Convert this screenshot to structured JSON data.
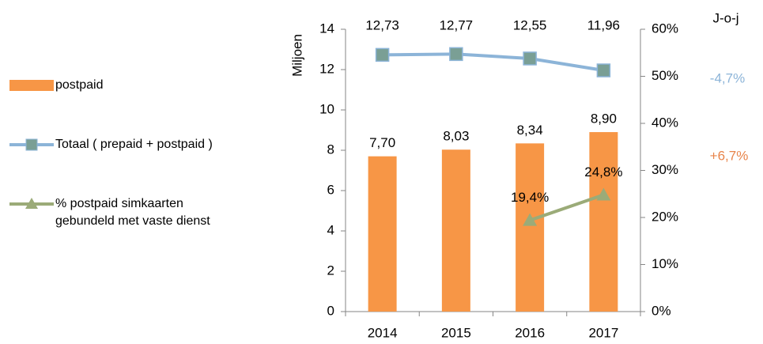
{
  "chart_data": {
    "type": "bar",
    "categories": [
      "2014",
      "2015",
      "2016",
      "2017"
    ],
    "y_label": "Miljoen",
    "ylim": [
      0,
      14
    ],
    "yticks": [
      0,
      2,
      4,
      6,
      8,
      10,
      12,
      14
    ],
    "y2lim": [
      0,
      60
    ],
    "y2ticks": [
      {
        "value": 0,
        "label": "0%"
      },
      {
        "value": 10,
        "label": "10%"
      },
      {
        "value": 20,
        "label": "20%"
      },
      {
        "value": 30,
        "label": "30%"
      },
      {
        "value": 40,
        "label": "40%"
      },
      {
        "value": 50,
        "label": "50%"
      },
      {
        "value": 60,
        "label": "60%"
      }
    ],
    "series": [
      {
        "name": "postpaid",
        "type": "bar",
        "color": "#f79646",
        "values": [
          7.7,
          8.03,
          8.34,
          8.9
        ],
        "value_labels": [
          "7,70",
          "8,03",
          "8,34",
          "8,90"
        ]
      },
      {
        "name": "Totaal ( prepaid + postpaid )",
        "type": "line",
        "color": "#8cb4d8",
        "marker_color": "#7a9f95",
        "marker": "square",
        "values": [
          12.73,
          12.77,
          12.55,
          11.96
        ],
        "value_labels": [
          "12,73",
          "12,77",
          "12,55",
          "11,96"
        ]
      },
      {
        "name": "% postpaid simkaarten gebundeld met vaste dienst",
        "type": "line",
        "axis": "y2",
        "color": "#9bab78",
        "marker_color": "#9bab78",
        "marker": "triangle",
        "values": [
          null,
          null,
          19.4,
          24.8
        ],
        "value_labels": [
          null,
          null,
          "19,4%",
          "24,8%"
        ]
      }
    ],
    "annotations": [
      {
        "text": "J-o-j",
        "color": "#000000"
      },
      {
        "text": "-4,7%",
        "color": "#8cb4d8"
      },
      {
        "text": "+6,7%",
        "color": "#e8844a"
      }
    ]
  }
}
